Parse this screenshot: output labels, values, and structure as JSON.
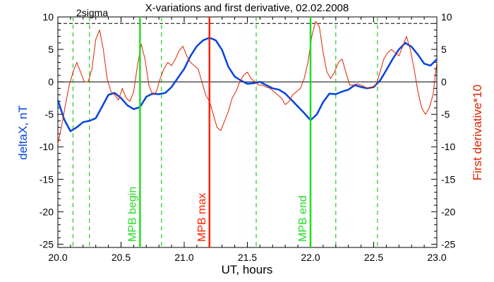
{
  "chart_data": {
    "type": "line",
    "title": "X-variations and first derivative, 02.02.2008",
    "xlabel": "UT, hours",
    "ylabel_left": "deltaX, nT",
    "ylabel_right": "First derivative*10",
    "xlim": [
      20.0,
      23.0
    ],
    "ylim": [
      -25.5,
      10
    ],
    "x_ticks": [
      "20.0",
      "20.5",
      "21.0",
      "21.5",
      "22.0",
      "22.5",
      "23.0"
    ],
    "y_ticks_left": [
      "10",
      "5",
      "0",
      "-5",
      "-10",
      "-15",
      "-20",
      "-25"
    ],
    "y_ticks_right": [
      "10",
      "5",
      "0",
      "-5",
      "-10",
      "-15",
      "-20",
      "-25"
    ],
    "grid": false,
    "sigma_label": "2sigma",
    "sigma_level": 9,
    "colors": {
      "deltaX": "#0044dd",
      "derivative": "#dd2200",
      "mpb_edge": "#22dd22",
      "mpb_max": "#ff2200",
      "dashed": "#22cc22"
    },
    "series": [
      {
        "name": "deltaX, nT",
        "axis": "left",
        "x": [
          20.0,
          20.05,
          20.1,
          20.15,
          20.2,
          20.25,
          20.3,
          20.35,
          20.4,
          20.45,
          20.5,
          20.55,
          20.6,
          20.65,
          20.7,
          20.75,
          20.8,
          20.85,
          20.9,
          20.95,
          21.0,
          21.05,
          21.1,
          21.15,
          21.2,
          21.25,
          21.3,
          21.35,
          21.4,
          21.45,
          21.5,
          21.55,
          21.6,
          21.65,
          21.7,
          21.75,
          21.8,
          21.85,
          21.9,
          21.95,
          22.0,
          22.05,
          22.1,
          22.15,
          22.2,
          22.25,
          22.3,
          22.35,
          22.4,
          22.45,
          22.5,
          22.55,
          22.6,
          22.65,
          22.7,
          22.75,
          22.8,
          22.85,
          22.9,
          22.95,
          23.0
        ],
        "y": [
          -2.8,
          -5.8,
          -7.6,
          -7.0,
          -6.2,
          -6.0,
          -5.6,
          -3.8,
          -2.0,
          -1.7,
          -2.5,
          -3.6,
          -4.2,
          -3.9,
          -2.3,
          -1.8,
          -1.9,
          -1.7,
          -0.8,
          0.6,
          2.0,
          4.0,
          5.5,
          6.4,
          6.8,
          6.4,
          4.9,
          2.3,
          0.8,
          0.2,
          -0.3,
          -0.2,
          0.0,
          -0.5,
          -1.0,
          -1.2,
          -1.8,
          -2.8,
          -3.8,
          -4.8,
          -5.9,
          -5.0,
          -3.1,
          -1.8,
          -1.9,
          -1.5,
          -1.2,
          -0.5,
          -0.8,
          -1.0,
          -0.8,
          0.2,
          1.8,
          3.5,
          5.0,
          6.0,
          5.4,
          4.2,
          2.8,
          2.5,
          3.5
        ]
      },
      {
        "name": "First derivative*10",
        "axis": "right",
        "x": [
          20.0,
          20.03,
          20.06,
          20.09,
          20.12,
          20.15,
          20.18,
          20.21,
          20.24,
          20.27,
          20.3,
          20.33,
          20.36,
          20.39,
          20.42,
          20.45,
          20.48,
          20.51,
          20.54,
          20.57,
          20.6,
          20.63,
          20.66,
          20.69,
          20.72,
          20.75,
          20.78,
          20.81,
          20.84,
          20.87,
          20.9,
          20.93,
          20.96,
          20.99,
          21.02,
          21.05,
          21.08,
          21.11,
          21.14,
          21.17,
          21.2,
          21.23,
          21.26,
          21.29,
          21.32,
          21.35,
          21.38,
          21.41,
          21.44,
          21.47,
          21.5,
          21.53,
          21.56,
          21.59,
          21.62,
          21.65,
          21.68,
          21.71,
          21.74,
          21.77,
          21.8,
          21.83,
          21.86,
          21.89,
          21.92,
          21.95,
          21.98,
          22.01,
          22.04,
          22.07,
          22.1,
          22.13,
          22.16,
          22.19,
          22.22,
          22.25,
          22.28,
          22.31,
          22.34,
          22.37,
          22.4,
          22.43,
          22.46,
          22.49,
          22.52,
          22.55,
          22.58,
          22.61,
          22.64,
          22.67,
          22.7,
          22.73,
          22.76,
          22.79,
          22.82,
          22.85,
          22.88,
          22.91,
          22.94,
          22.97,
          23.0
        ],
        "y": [
          -9.5,
          -6.8,
          -3.5,
          -0.5,
          1.5,
          3.0,
          1.5,
          0.0,
          0.0,
          2.0,
          6.5,
          8.0,
          5.0,
          0.5,
          -1.5,
          -2.0,
          -2.8,
          -1.0,
          -2.5,
          -3.0,
          -1.5,
          2.5,
          5.8,
          3.5,
          -0.5,
          -2.0,
          -1.5,
          0.5,
          2.0,
          3.0,
          2.5,
          3.5,
          4.8,
          5.5,
          4.0,
          3.0,
          2.5,
          2.0,
          0.0,
          -2.0,
          -3.0,
          -5.0,
          -7.0,
          -7.5,
          -6.0,
          -4.5,
          -2.5,
          -1.5,
          0.0,
          1.0,
          1.5,
          0.5,
          0.0,
          -0.5,
          -0.5,
          -0.8,
          -1.0,
          -1.5,
          -2.0,
          -2.5,
          -3.5,
          -3.0,
          -2.0,
          -1.5,
          -1.0,
          0.5,
          3.0,
          7.0,
          9.3,
          8.5,
          4.5,
          1.5,
          0.5,
          1.5,
          3.0,
          3.5,
          1.5,
          -0.5,
          -0.5,
          -0.3,
          -0.5,
          -0.8,
          -1.0,
          -0.8,
          -0.5,
          1.5,
          3.5,
          4.5,
          5.0,
          4.5,
          4.0,
          5.5,
          7.0,
          5.0,
          2.0,
          -1.5,
          -4.0,
          -5.0,
          -4.0,
          -2.0,
          3.0
        ]
      }
    ],
    "zero_line": 0,
    "vertical_markers": [
      {
        "x": 20.65,
        "label": "MPB begin",
        "color": "#22dd22",
        "style": "solid"
      },
      {
        "x": 21.2,
        "label": "MPB max",
        "color": "#ff2200",
        "style": "solid"
      },
      {
        "x": 22.0,
        "label": "MPB end",
        "color": "#22dd22",
        "style": "solid"
      }
    ],
    "dashed_markers": [
      20.12,
      20.25,
      20.82,
      21.57,
      22.2,
      22.53
    ]
  }
}
